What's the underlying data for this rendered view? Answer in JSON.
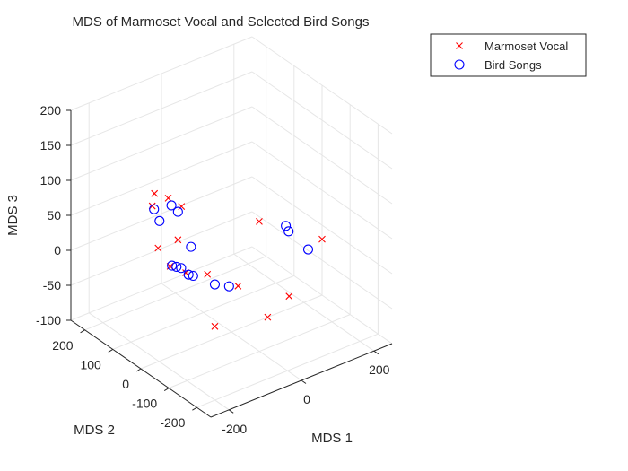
{
  "chart_data": {
    "type": "scatter",
    "dimensions": 3,
    "title": "MDS of Marmoset Vocal and Selected Bird Songs",
    "xlabel": "MDS 1",
    "ylabel": "MDS 2",
    "zlabel": "MDS 3",
    "xlim": [
      -250,
      250
    ],
    "ylim": [
      -250,
      250
    ],
    "zlim": [
      -100,
      200
    ],
    "xticks": [
      -200,
      0,
      200
    ],
    "yticks": [
      -200,
      -100,
      0,
      100,
      200
    ],
    "zticks": [
      -100,
      -50,
      0,
      50,
      100,
      150,
      200
    ],
    "grid": true,
    "legend_position": "top-right",
    "series": [
      {
        "name": "Marmoset Vocal",
        "marker": "x",
        "color": "#ff0000",
        "points": [
          [
            -20,
            200,
            40
          ],
          [
            5,
            185,
            27
          ],
          [
            -85,
            165,
            70
          ],
          [
            -85,
            173,
            50
          ],
          [
            -55,
            120,
            10
          ],
          [
            -75,
            165,
            -10
          ],
          [
            -65,
            135,
            -30
          ],
          [
            -45,
            105,
            -35
          ],
          [
            -20,
            60,
            -30
          ],
          [
            -15,
            40,
            -100
          ],
          [
            -5,
            -30,
            -25
          ],
          [
            100,
            0,
            -100
          ],
          [
            150,
            95,
            0
          ],
          [
            190,
            40,
            -100
          ],
          [
            250,
            0,
            -20
          ]
        ]
      },
      {
        "name": "Bird Songs",
        "marker": "o",
        "color": "#0000ff",
        "points": [
          [
            -15,
            195,
            30
          ],
          [
            -90,
            160,
            50
          ],
          [
            -55,
            120,
            50
          ],
          [
            -75,
            160,
            30
          ],
          [
            -50,
            80,
            10
          ],
          [
            -60,
            135,
            -30
          ],
          [
            -55,
            125,
            -30
          ],
          [
            -50,
            115,
            -30
          ],
          [
            -45,
            95,
            -35
          ],
          [
            -40,
            85,
            -35
          ],
          [
            -15,
            40,
            -40
          ],
          [
            5,
            15,
            -40
          ],
          [
            150,
            0,
            20
          ],
          [
            150,
            -10,
            15
          ],
          [
            200,
            -15,
            -20
          ]
        ]
      }
    ]
  }
}
